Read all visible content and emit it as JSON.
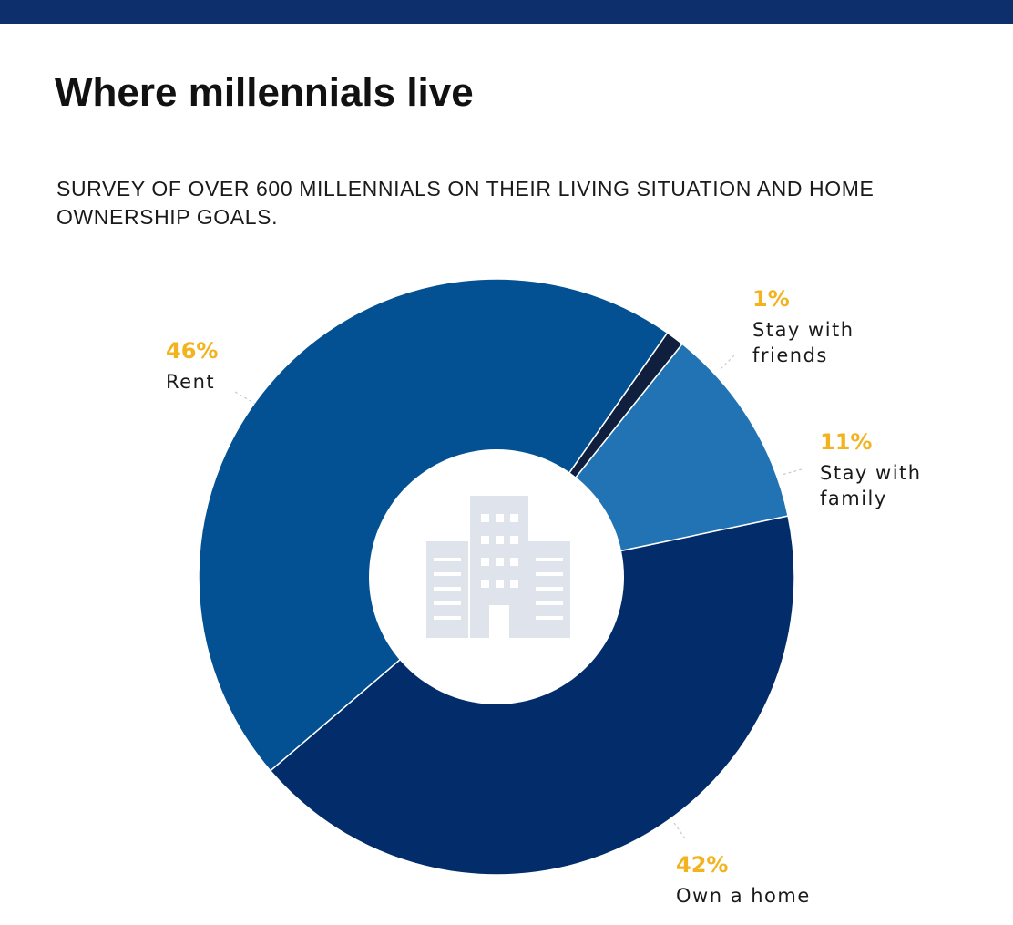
{
  "header": {
    "title": "Where millennials live",
    "subtitle": "SURVEY OF OVER 600 MILLENNIALS ON THEIR LIVING SITUATION AND HOME OWNERSHIP GOALS."
  },
  "colors": {
    "top_bar": "#0d2f6c",
    "percent_text": "#f2b31f",
    "label_text": "#1a1a1a",
    "center_icon": "#dfe4ec",
    "leader_line": "#c5ccd6"
  },
  "center_icon": "building-icon",
  "chart_data": {
    "type": "pie",
    "variant": "donut",
    "title": "Where millennials live",
    "subtitle": "SURVEY OF OVER 600 MILLENNIALS ON THEIR LIVING SITUATION AND HOME OWNERSHIP GOALS.",
    "slices": [
      {
        "label": "Stay with friends",
        "display_label": [
          "Stay with",
          "friends"
        ],
        "value": 1,
        "display_value": "1%",
        "color": "#0f1f3d"
      },
      {
        "label": "Stay with family",
        "display_label": [
          "Stay with",
          "family"
        ],
        "value": 11,
        "display_value": "11%",
        "color": "#2273b4"
      },
      {
        "label": "Own a home",
        "display_label": [
          "Own a home"
        ],
        "value": 42,
        "display_value": "42%",
        "color": "#022d6a"
      },
      {
        "label": "Rent",
        "display_label": [
          "Rent"
        ],
        "value": 46,
        "display_value": "46%",
        "color": "#035193"
      }
    ],
    "legend": "none"
  }
}
